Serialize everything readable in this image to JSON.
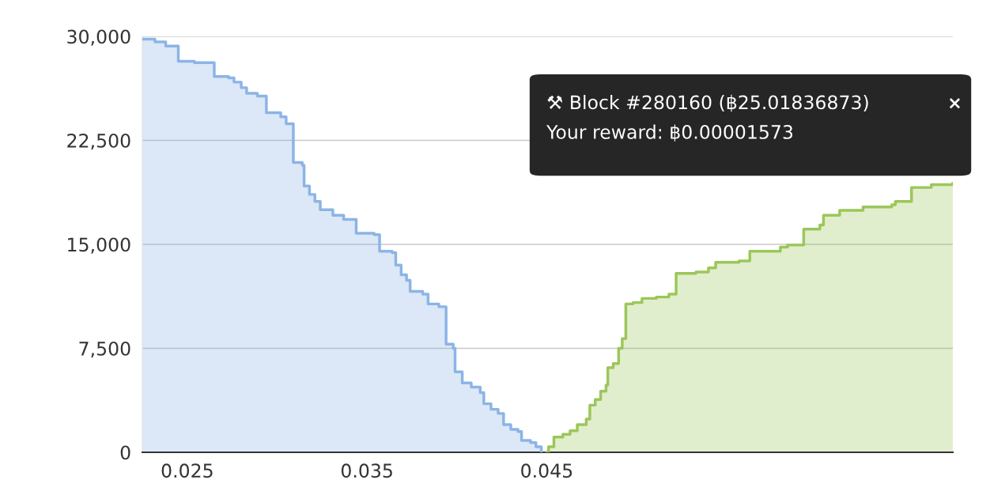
{
  "chart_data": {
    "type": "area",
    "line_style": "solid",
    "marker": "none",
    "series": [
      {
        "color": "#8cb4e6",
        "x": [
          0.0225,
          0.0232,
          0.0238,
          0.0245,
          0.0254,
          0.0265,
          0.0273,
          0.0276,
          0.028,
          0.0283,
          0.0289,
          0.0294,
          0.0302,
          0.0305,
          0.0309,
          0.0314,
          0.0315,
          0.0318,
          0.0321,
          0.0324,
          0.0331,
          0.0337,
          0.0344,
          0.0354,
          0.0357,
          0.0364,
          0.0366,
          0.0369,
          0.0372,
          0.0374,
          0.0381,
          0.0384,
          0.039,
          0.0394,
          0.0398,
          0.0399,
          0.0403,
          0.0408,
          0.0413,
          0.0415,
          0.0419,
          0.0423,
          0.0426,
          0.043,
          0.0434,
          0.0436,
          0.0441,
          0.0444,
          0.0447
        ],
        "values": [
          29800,
          29600,
          29300,
          28200,
          28100,
          27100,
          27000,
          26700,
          26300,
          25900,
          25700,
          24500,
          24200,
          23700,
          20900,
          20700,
          19200,
          18600,
          18100,
          17500,
          17100,
          16800,
          15800,
          15700,
          14500,
          14400,
          13500,
          12800,
          12400,
          11600,
          11400,
          10700,
          10500,
          7800,
          7500,
          5800,
          5000,
          4700,
          4300,
          3500,
          3100,
          2800,
          2000,
          1650,
          1500,
          850,
          700,
          400,
          0
        ]
      },
      {
        "color": "#9cc65a",
        "x": [
          0.045,
          0.0451,
          0.0454,
          0.0459,
          0.0463,
          0.0467,
          0.0472,
          0.0474,
          0.0477,
          0.048,
          0.0483,
          0.0484,
          0.0487,
          0.049,
          0.0492,
          0.0494,
          0.0498,
          0.0503,
          0.0511,
          0.0518,
          0.0522,
          0.0533,
          0.054,
          0.0544,
          0.0557,
          0.0563,
          0.058,
          0.0584,
          0.0593,
          0.0602,
          0.0604,
          0.0613,
          0.0626,
          0.0642,
          0.0644,
          0.0653,
          0.0664,
          0.0676
        ],
        "values": [
          0,
          400,
          1100,
          1300,
          1550,
          2000,
          2400,
          3400,
          3800,
          4400,
          4850,
          6100,
          6400,
          7500,
          8200,
          10700,
          10800,
          11100,
          11200,
          11400,
          12900,
          13000,
          13300,
          13700,
          13800,
          14500,
          14800,
          14950,
          16100,
          16400,
          17100,
          17450,
          17700,
          17850,
          18100,
          19100,
          19300,
          19400
        ]
      }
    ],
    "xlim": [
      0.0225,
      0.0676
    ],
    "xticks": [
      0.025,
      0.035,
      0.045
    ],
    "ylim": [
      0,
      30000
    ],
    "yticks": [
      {
        "value": 0,
        "label": "0"
      },
      {
        "value": 7500,
        "label": "7,500"
      },
      {
        "value": 15000,
        "label": "15,000"
      },
      {
        "value": 22500,
        "label": "22,500"
      },
      {
        "value": 30000,
        "label": "30,000"
      }
    ],
    "grid": "y",
    "annotations": [
      "⚒ Block #280160 (฿25.01836873)",
      "Your reward: ฿0.00001573",
      "×"
    ]
  }
}
